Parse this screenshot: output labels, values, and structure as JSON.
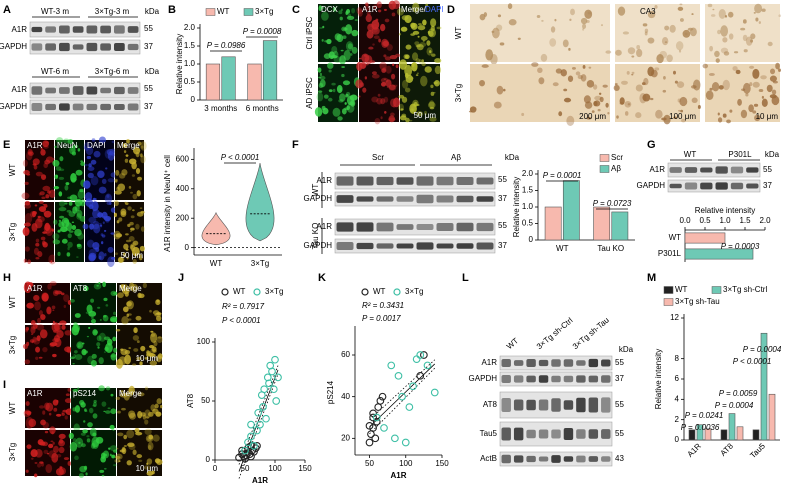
{
  "panels": [
    "A",
    "B",
    "C",
    "D",
    "E",
    "F",
    "G",
    "H",
    "I",
    "J",
    "K",
    "L",
    "M"
  ],
  "A": {
    "blots": [
      {
        "groups": [
          "WT-3 m",
          "3×Tg-3 m"
        ],
        "unit": "kDa",
        "rows": [
          "A1R",
          "GAPDH"
        ],
        "kda": [
          55,
          37
        ]
      },
      {
        "groups": [
          "WT-6 m",
          "3×Tg-6 m"
        ],
        "unit": "kDa",
        "rows": [
          "A1R",
          "GAPDH"
        ],
        "kda": [
          55,
          37
        ]
      }
    ]
  },
  "C": {
    "columns": [
      "DCX",
      "A1R",
      "Merge/"
    ],
    "dapi": "DAPI",
    "rows": [
      "Ctrl iPSC",
      "AD iPSC"
    ],
    "scale": "50 μm"
  },
  "D": {
    "rows": [
      "WT",
      "3×Tg"
    ],
    "region": "CA3",
    "scales": [
      "200 μm",
      "100 μm",
      "10 μm"
    ]
  },
  "E": {
    "columns": [
      "A1R",
      "NeuN",
      "DAPI",
      "Merge"
    ],
    "rows": [
      "WT",
      "3×Tg"
    ],
    "scale": "50 μm"
  },
  "F": {
    "groups": [
      "Scr",
      "Aβ"
    ],
    "unit": "kDa",
    "blots": [
      {
        "genotype": "WT",
        "rows": [
          "A1R",
          "GAPDH"
        ],
        "kda": [
          55,
          37
        ]
      },
      {
        "genotype": "Tau KO",
        "rows": [
          "A1R",
          "GAPDH"
        ],
        "kda": [
          55,
          37
        ]
      }
    ]
  },
  "G": {
    "groups": [
      "WT",
      "P301L"
    ],
    "unit": "kDa",
    "rows": [
      "A1R",
      "GAPDH"
    ],
    "kda": [
      55,
      37
    ]
  },
  "H": {
    "columns": [
      "A1R",
      "AT8",
      "Merge"
    ],
    "rows": [
      "WT",
      "3×Tg"
    ],
    "scale": "10 μm"
  },
  "I": {
    "columns": [
      "A1R",
      "pS214",
      "Merge"
    ],
    "rows": [
      "WT",
      "3×Tg"
    ],
    "scale": "10 μm"
  },
  "L": {
    "groups": [
      "WT",
      "3×Tg sh-Ctrl",
      "3×Tg sh-Tau"
    ],
    "unit": "kDa",
    "rows": [
      "A1R",
      "GAPDH",
      "AT8",
      "Tau5",
      "ActB"
    ],
    "kda": [
      55,
      37,
      55,
      55,
      43
    ]
  },
  "chart_data": [
    {
      "type": "bar",
      "ylabel": "Relative intensity",
      "categories": [
        "3 months",
        "6 months"
      ],
      "series": [
        {
          "name": "WT",
          "color": "#f7b9ae",
          "values": [
            1.0,
            1.0
          ]
        },
        {
          "name": "3×Tg",
          "color": "#6ec9b5",
          "values": [
            1.2,
            1.65
          ]
        }
      ],
      "ylim": [
        0,
        2.0
      ],
      "yticks": [
        0,
        0.5,
        {
          "value": 1,
          "label": "1.0"
        },
        1.5,
        {
          "value": 2,
          "label": "2.0"
        }
      ],
      "annotations": [
        "P = 0.0986",
        "P = 0.0008"
      ]
    },
    {
      "type": "violin",
      "ylabel": "A1R intensity in NeuN⁺ cell",
      "categories": [
        "WT",
        "3×Tg"
      ],
      "colors": [
        "#f7b9ae",
        "#6ec9b5"
      ],
      "values": [
        95,
        230
      ],
      "ylim": [
        -50,
        650
      ],
      "yticks": [
        0,
        200,
        400,
        600
      ],
      "annotations": [
        "P < 0.0001"
      ]
    },
    {
      "type": "bar",
      "ylabel": "Relative intensity",
      "categories": [
        "WT",
        "Tau KO"
      ],
      "series": [
        {
          "name": "Scr",
          "color": "#f7b9ae",
          "values": [
            1.0,
            1.0
          ]
        },
        {
          "name": "Aβ",
          "color": "#6ec9b5",
          "values": [
            1.8,
            0.85
          ]
        }
      ],
      "ylim": [
        0,
        2.0
      ],
      "yticks": [
        0,
        0.5,
        {
          "value": 1,
          "label": "1.0"
        },
        1.5,
        {
          "value": 2,
          "label": "2.0"
        }
      ],
      "annotations": [
        "P = 0.0001",
        "P = 0.0723"
      ]
    },
    {
      "type": "hbar",
      "title": "Relative intensity",
      "categories": [
        "WT",
        "P301L"
      ],
      "colors": [
        "#f7b9ae",
        "#6ec9b5"
      ],
      "values": [
        1.0,
        1.7
      ],
      "xlim": [
        0,
        2.0
      ],
      "xticks": [
        {
          "value": 0,
          "label": "0.0"
        },
        0.5,
        {
          "value": 1,
          "label": "1.0"
        },
        1.5,
        {
          "value": 2,
          "label": "2.0"
        }
      ],
      "annotations": [
        "P = 0.0003"
      ]
    },
    {
      "type": "scatter",
      "xlabel": "A1R",
      "ylabel": "AT8",
      "series": [
        {
          "name": "WT",
          "color": "#222222",
          "x": [
            40,
            45,
            48,
            50,
            52,
            55,
            55,
            58,
            60,
            62,
            65,
            68,
            70,
            50,
            45,
            60
          ],
          "y": [
            2,
            5,
            3,
            8,
            4,
            6,
            10,
            5,
            12,
            8,
            7,
            10,
            12,
            1,
            8,
            3
          ]
        },
        {
          "name": "3×Tg",
          "color": "#3dbfa5",
          "x": [
            50,
            55,
            60,
            65,
            70,
            72,
            75,
            78,
            80,
            82,
            85,
            88,
            90,
            92,
            95,
            98,
            100,
            102,
            105,
            60
          ],
          "y": [
            8,
            15,
            20,
            12,
            25,
            40,
            30,
            55,
            45,
            60,
            35,
            70,
            65,
            80,
            75,
            60,
            85,
            50,
            70,
            30
          ]
        }
      ],
      "xlim": [
        0,
        150
      ],
      "ylim": [
        0,
        100
      ],
      "xticks": [
        0,
        50,
        100,
        150
      ],
      "yticks": [
        0,
        50,
        100
      ],
      "annotations": [
        "R² = 0.7917",
        "P < 0.0001"
      ]
    },
    {
      "type": "scatter",
      "xlabel": "A1R",
      "ylabel": "pS214",
      "series": [
        {
          "name": "WT",
          "color": "#222222",
          "x": [
            50,
            52,
            55,
            55,
            58,
            60,
            62,
            65,
            68,
            55,
            50,
            125,
            120
          ],
          "y": [
            18,
            22,
            25,
            30,
            20,
            28,
            35,
            38,
            40,
            32,
            26,
            60,
            50
          ]
        },
        {
          "name": "3×Tg",
          "color": "#3dbfa5",
          "x": [
            60,
            70,
            80,
            85,
            95,
            100,
            110,
            115,
            120,
            130,
            140,
            105,
            90
          ],
          "y": [
            30,
            25,
            55,
            20,
            40,
            18,
            45,
            58,
            60,
            55,
            42,
            35,
            50
          ]
        }
      ],
      "xlim": [
        30,
        150
      ],
      "ylim": [
        12,
        72
      ],
      "xticks": [
        50,
        100,
        150
      ],
      "yticks": [
        20,
        40,
        60
      ],
      "annotations": [
        "R² = 0.3431",
        "P = 0.0017"
      ]
    },
    {
      "type": "bar",
      "ylabel": "Relative intensity",
      "categories": [
        "A1R",
        "AT8",
        "Tau5"
      ],
      "series": [
        {
          "name": "WT",
          "color": "#222222",
          "values": [
            1.0,
            1.0,
            1.0
          ]
        },
        {
          "name": "3×Tg sh-Ctrl",
          "color": "#6ec9b5",
          "values": [
            1.5,
            2.6,
            10.5
          ]
        },
        {
          "name": "3×Tg sh-Tau",
          "color": "#f7b9ae",
          "values": [
            1.1,
            1.3,
            4.5
          ]
        }
      ],
      "ylim": [
        0,
        12
      ],
      "yticks": [
        0,
        2,
        4,
        6,
        8,
        12
      ],
      "annotations": [
        "P = 0.0036",
        "P = 0.0241",
        "P = 0.0004",
        "P = 0.0059",
        "P < 0.0001",
        "P = 0.0004"
      ]
    }
  ]
}
